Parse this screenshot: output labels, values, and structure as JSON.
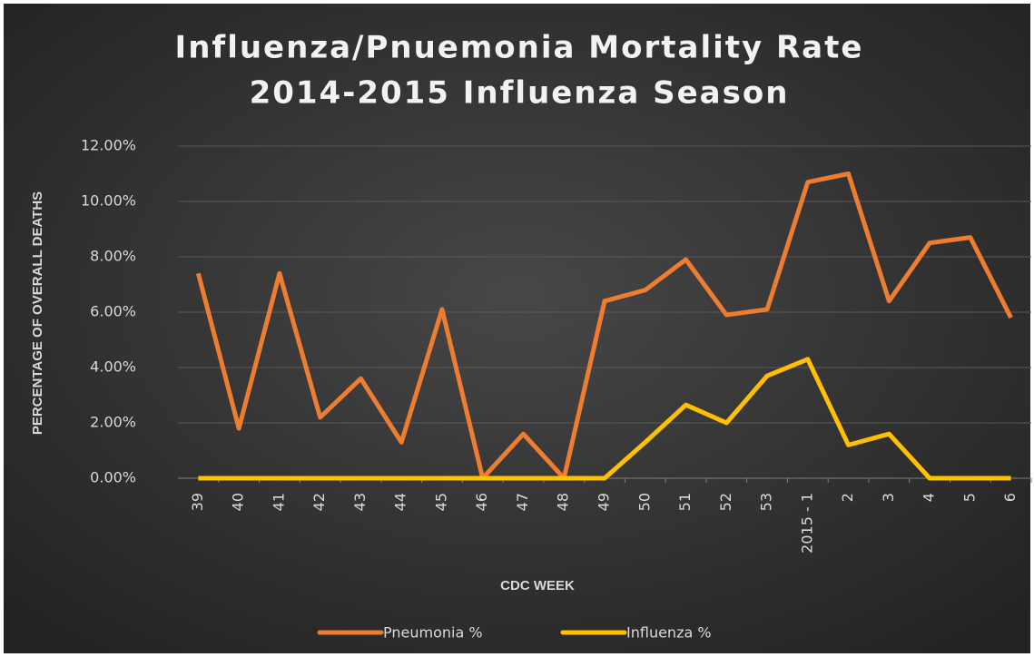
{
  "chart_data": {
    "type": "line",
    "title": "Influenza/Pnuemonia Mortality Rate",
    "subtitle": "2014-2015 Influenza Season",
    "y_label": "PERCENTAGE OF OVERALL DEATHS",
    "x_label": "CDC WEEK",
    "categories": [
      "39",
      "40",
      "41",
      "42",
      "43",
      "44",
      "45",
      "46",
      "47",
      "48",
      "49",
      "50",
      "51",
      "52",
      "53",
      "2015 - 1",
      "2",
      "3",
      "4",
      "5",
      "6"
    ],
    "series": [
      {
        "name": "Pneumonia %",
        "color": "#ed7d31",
        "values": [
          7.4,
          1.8,
          7.4,
          2.2,
          3.6,
          1.3,
          6.1,
          0,
          1.6,
          0,
          6.4,
          6.8,
          7.9,
          5.9,
          6.1,
          10.7,
          11.0,
          6.4,
          8.5,
          8.7,
          5.8
        ]
      },
      {
        "name": "Influenza %",
        "color": "#ffc000",
        "values": [
          0,
          0,
          0,
          0,
          0,
          0,
          0,
          0,
          0,
          0,
          0,
          1.3,
          2.65,
          2.0,
          3.7,
          4.3,
          1.2,
          1.6,
          0,
          0,
          0
        ]
      }
    ],
    "ylim": [
      0,
      12
    ],
    "yticks": [
      {
        "value": 0,
        "label": "0.00%"
      },
      {
        "value": 2,
        "label": "2.00%"
      },
      {
        "value": 4,
        "label": "4.00%"
      },
      {
        "value": 6,
        "label": "6.00%"
      },
      {
        "value": 8,
        "label": "8.00%"
      },
      {
        "value": 10,
        "label": "10.00%"
      },
      {
        "value": 12,
        "label": "12.00%"
      }
    ],
    "grid": true,
    "legend": "bottom"
  }
}
